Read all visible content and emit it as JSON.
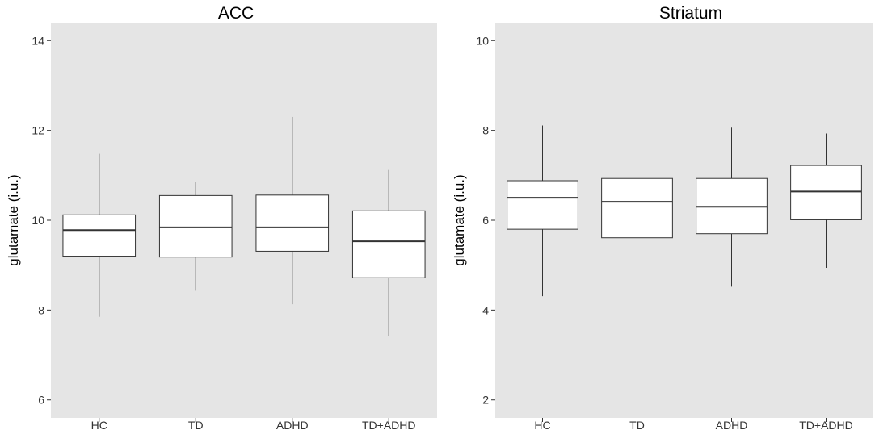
{
  "chart_data": [
    {
      "type": "boxplot",
      "title": "ACC",
      "ylabel": "glutamate (i.u.)",
      "xlabel": "",
      "categories": [
        "HC",
        "TD",
        "ADHD",
        "TD+ADHD"
      ],
      "ylim": [
        5.6,
        14.4
      ],
      "yticks": [
        6,
        8,
        10,
        12,
        14
      ],
      "ytick_labels": [
        "6",
        "8",
        "10",
        "12",
        "14"
      ],
      "boxes": [
        {
          "whisker_low": 7.85,
          "q1": 9.2,
          "median": 9.78,
          "q3": 10.12,
          "whisker_high": 11.48
        },
        {
          "whisker_low": 8.43,
          "q1": 9.18,
          "median": 9.84,
          "q3": 10.55,
          "whisker_high": 10.86
        },
        {
          "whisker_low": 8.13,
          "q1": 9.31,
          "median": 9.84,
          "q3": 10.56,
          "whisker_high": 12.3
        },
        {
          "whisker_low": 7.43,
          "q1": 8.72,
          "median": 9.53,
          "q3": 10.21,
          "whisker_high": 11.12
        }
      ],
      "panel_color": "#e5e5e5",
      "box_fill": "#ffffff",
      "line_color": "#333333",
      "grid": false
    },
    {
      "type": "boxplot",
      "title": "Striatum",
      "ylabel": "glutamate (i.u.)",
      "xlabel": "",
      "categories": [
        "HC",
        "TD",
        "ADHD",
        "TD+ADHD"
      ],
      "ylim": [
        1.6,
        10.4
      ],
      "yticks": [
        2,
        4,
        6,
        8,
        10
      ],
      "ytick_labels": [
        "2",
        "4",
        "6",
        "8",
        "10"
      ],
      "boxes": [
        {
          "whisker_low": 4.31,
          "q1": 5.8,
          "median": 6.5,
          "q3": 6.88,
          "whisker_high": 8.11
        },
        {
          "whisker_low": 4.61,
          "q1": 5.61,
          "median": 6.41,
          "q3": 6.93,
          "whisker_high": 7.38
        },
        {
          "whisker_low": 4.52,
          "q1": 5.7,
          "median": 6.3,
          "q3": 6.93,
          "whisker_high": 8.06
        },
        {
          "whisker_low": 4.94,
          "q1": 6.01,
          "median": 6.64,
          "q3": 7.22,
          "whisker_high": 7.93
        }
      ],
      "panel_color": "#e5e5e5",
      "box_fill": "#ffffff",
      "line_color": "#333333",
      "grid": false
    }
  ]
}
